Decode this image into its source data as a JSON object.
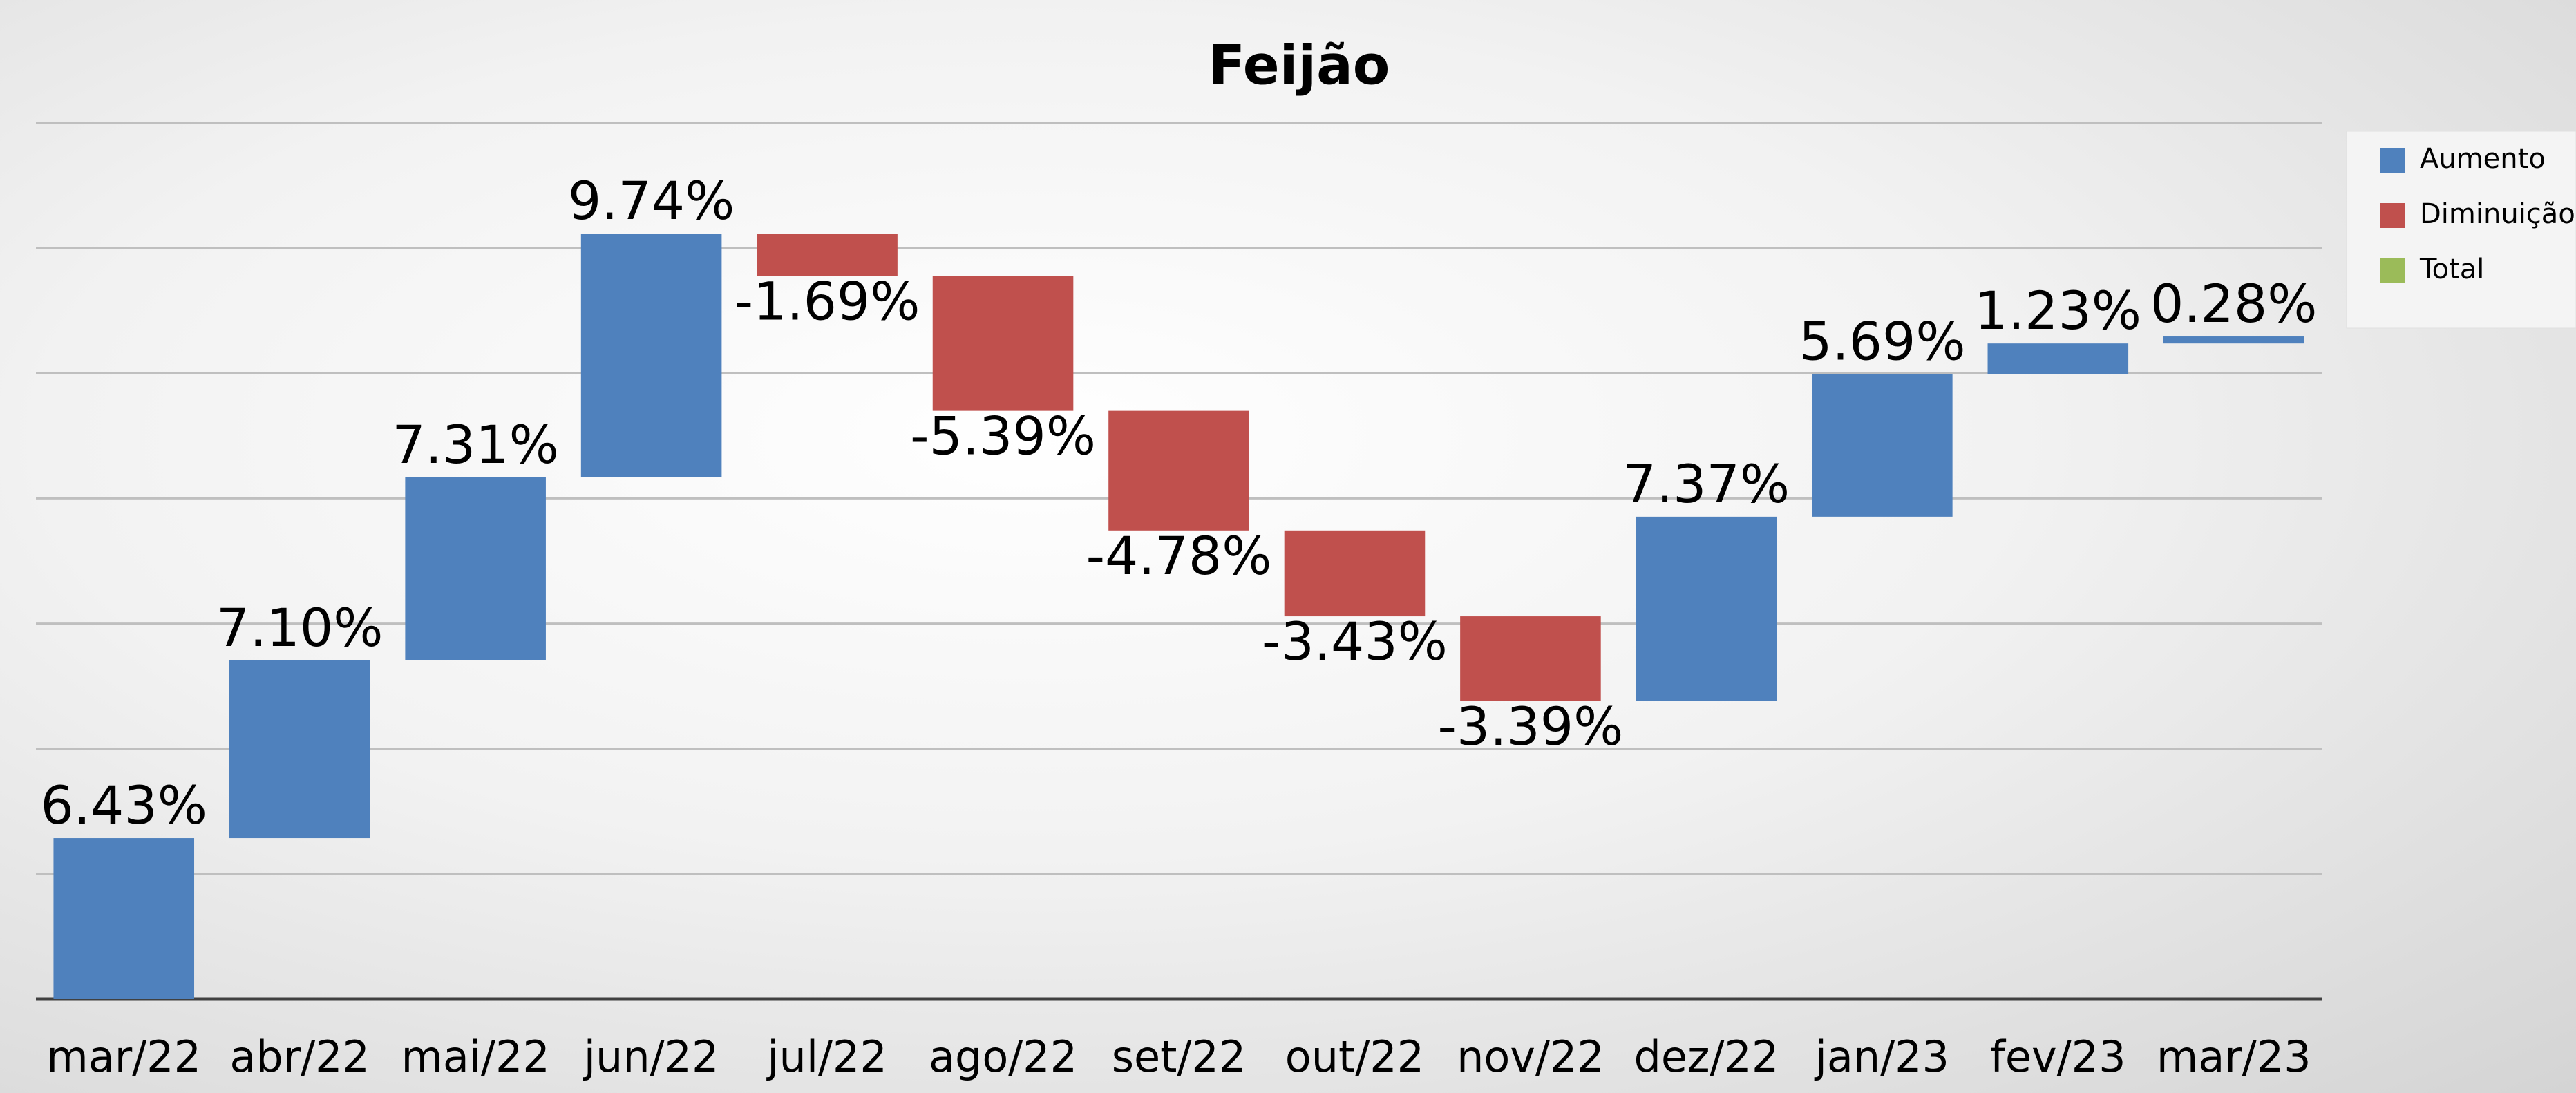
{
  "chart_data": {
    "type": "waterfall",
    "title": "Feijão",
    "categories": [
      "mar/22",
      "abr/22",
      "mai/22",
      "jun/22",
      "jul/22",
      "ago/22",
      "set/22",
      "out/22",
      "nov/22",
      "dez/22",
      "jan/23",
      "fev/23",
      "mar/23"
    ],
    "values": [
      6.43,
      7.1,
      7.31,
      9.74,
      -1.69,
      -5.39,
      -4.78,
      -3.43,
      -3.39,
      7.37,
      5.69,
      1.23,
      0.28
    ],
    "value_labels": [
      "6.43%",
      "7.10%",
      "7.31%",
      "9.74%",
      "-1.69%",
      "-5.39%",
      "-4.78%",
      "-3.43%",
      "-3.39%",
      "7.37%",
      "5.69%",
      "1.23%",
      "0.28%"
    ],
    "legend_items": [
      {
        "name": "Aumento",
        "color": "#4f81bd"
      },
      {
        "name": "Diminuição",
        "color": "#c0504d"
      },
      {
        "name": "Total",
        "color": "#9bbb59"
      }
    ],
    "legend_position": "right",
    "ylim": [
      0,
      35
    ],
    "yticks": [
      0,
      5,
      10,
      15,
      20,
      25,
      30,
      35
    ],
    "grid": true
  }
}
